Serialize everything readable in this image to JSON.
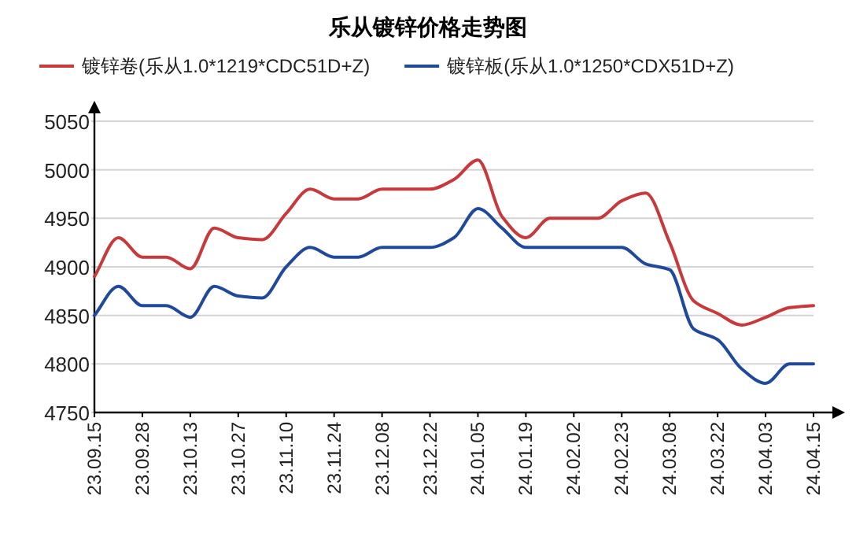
{
  "chart_data": {
    "type": "line",
    "title": "乐从镀锌价格走势图",
    "categories": [
      "23.09.15",
      null,
      "23.09.28",
      null,
      "23.10.13",
      null,
      "23.10.27",
      null,
      "23.11.10",
      null,
      "23.11.24",
      null,
      "23.12.08",
      null,
      "23.12.22",
      null,
      "24.01.05",
      null,
      "24.01.19",
      null,
      "24.02.02",
      null,
      "24.02.23",
      null,
      "24.03.08",
      null,
      "24.03.22",
      null,
      "24.04.03",
      null,
      "24.04.15"
    ],
    "series": [
      {
        "name": "镀锌卷(乐从1.0*1219*CDC51D+Z)",
        "color": "#c8393b",
        "values": [
          4890,
          4930,
          4910,
          4910,
          4898,
          4940,
          4930,
          4928,
          4955,
          4980,
          4970,
          4970,
          4980,
          4980,
          4980,
          4990,
          5010,
          4952,
          4930,
          4950,
          4950,
          4950,
          4968,
          4976,
          4925,
          4865,
          4852,
          4840,
          4848,
          4858,
          4860
        ]
      },
      {
        "name": "镀锌板(乐从1.0*1250*CDX51D+Z)",
        "color": "#1f4a9c",
        "values": [
          4850,
          4880,
          4860,
          4860,
          4848,
          4880,
          4870,
          4868,
          4900,
          4920,
          4910,
          4910,
          4920,
          4920,
          4920,
          4930,
          4960,
          4940,
          4920,
          4920,
          4920,
          4920,
          4920,
          4903,
          4897,
          4836,
          4825,
          4795,
          4780,
          4800,
          4800
        ]
      }
    ],
    "ylim": [
      4750,
      5050
    ],
    "yticks": [
      4750,
      4800,
      4850,
      4900,
      4950,
      5000,
      5050
    ],
    "grid": "y",
    "legend": "top"
  }
}
